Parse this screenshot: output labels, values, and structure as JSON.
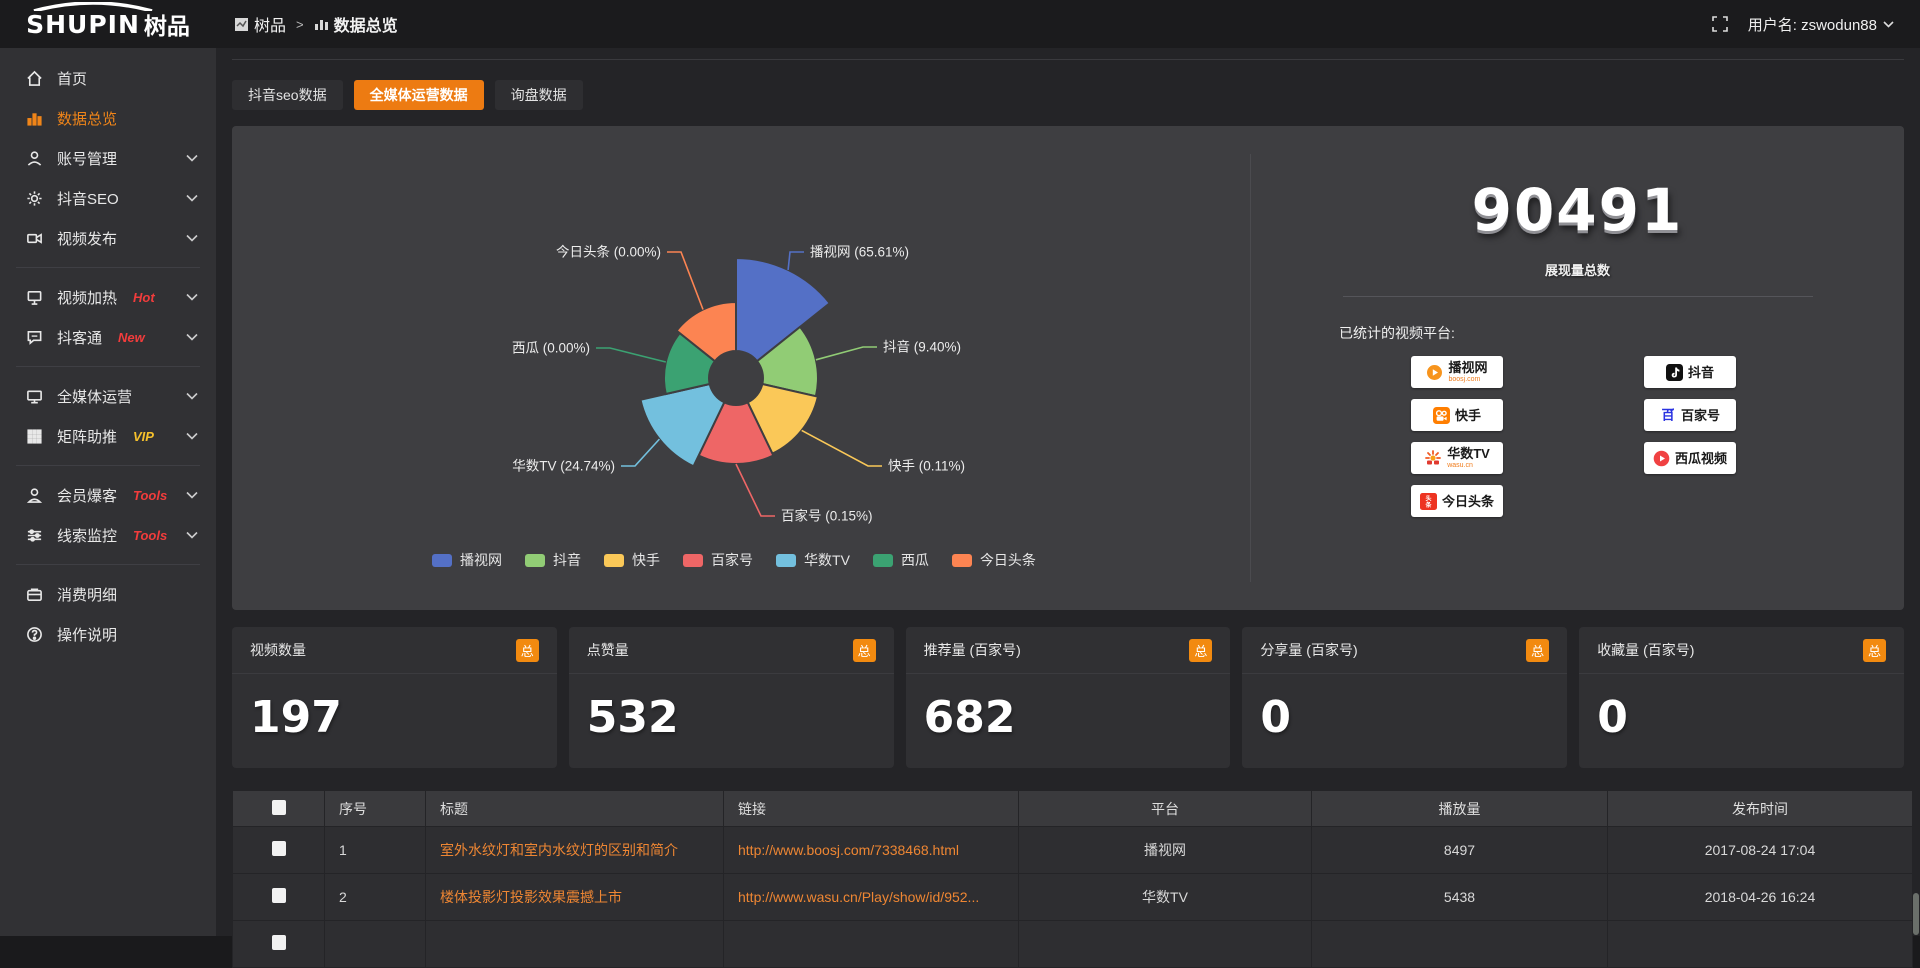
{
  "topbar": {
    "logo_text": "SHUPIN",
    "logo_suffix": "树品",
    "breadcrumb_home": "树品",
    "breadcrumb_sep": ">",
    "breadcrumb_current": "数据总览",
    "username": "用户名: zswodun88"
  },
  "sidebar": {
    "items": [
      {
        "label": "首页",
        "icon": "home-icon",
        "active": false,
        "chevron": false,
        "badge": "",
        "divider_after": false
      },
      {
        "label": "数据总览",
        "icon": "bar-chart-icon",
        "active": true,
        "chevron": false,
        "badge": "",
        "divider_after": false
      },
      {
        "label": "账号管理",
        "icon": "user-icon",
        "active": false,
        "chevron": true,
        "badge": "",
        "divider_after": false
      },
      {
        "label": "抖音SEO",
        "icon": "gear-icon",
        "active": false,
        "chevron": true,
        "badge": "",
        "divider_after": false
      },
      {
        "label": "视频发布",
        "icon": "video-camera-icon",
        "active": false,
        "chevron": true,
        "badge": "",
        "divider_after": true
      },
      {
        "label": "视频加热",
        "icon": "screen-icon",
        "active": false,
        "chevron": true,
        "badge": "Hot",
        "badge_color": "#f23c3c",
        "divider_after": false
      },
      {
        "label": "抖客通",
        "icon": "chat-bubble-icon",
        "active": false,
        "chevron": true,
        "badge": "New",
        "badge_color": "#f23c3c",
        "divider_after": true
      },
      {
        "label": "全媒体运营",
        "icon": "monitor-icon",
        "active": false,
        "chevron": true,
        "badge": "",
        "divider_after": false
      },
      {
        "label": "矩阵助推",
        "icon": "grid-icon",
        "active": false,
        "chevron": true,
        "badge": "VIP",
        "badge_color": "#f6c12c",
        "divider_after": true
      },
      {
        "label": "会员爆客",
        "icon": "member-icon",
        "active": false,
        "chevron": true,
        "badge": "Tools",
        "badge_color": "#f23c3c",
        "divider_after": false
      },
      {
        "label": "线索监控",
        "icon": "sliders-icon",
        "active": false,
        "chevron": true,
        "badge": "Tools",
        "badge_color": "#f23c3c",
        "divider_after": true
      },
      {
        "label": "消费明细",
        "icon": "wallet-icon",
        "active": false,
        "chevron": false,
        "badge": "",
        "divider_after": false
      },
      {
        "label": "操作说明",
        "icon": "help-circle-icon",
        "active": false,
        "chevron": false,
        "badge": "",
        "divider_after": false
      }
    ]
  },
  "tabs": [
    {
      "label": "抖音seo数据",
      "active": false
    },
    {
      "label": "全媒体运营数据",
      "active": true
    },
    {
      "label": "询盘数据",
      "active": false
    }
  ],
  "chart_data": {
    "type": "pie",
    "subtype": "nightingale-rose-donut",
    "title": "",
    "categories": [
      "播视网",
      "抖音",
      "快手",
      "百家号",
      "华数TV",
      "西瓜",
      "今日头条"
    ],
    "values": [
      65.61,
      9.4,
      0.11,
      0.15,
      24.74,
      0.0,
      0.0
    ],
    "unit": "%",
    "labels": [
      "播视网 (65.61%)",
      "抖音 (9.40%)",
      "快手 (0.11%)",
      "百家号 (0.15%)",
      "华数TV (24.74%)",
      "西瓜 (0.00%)",
      "今日头条 (0.00%)"
    ],
    "colors": [
      "#5470C6",
      "#91CC75",
      "#FAC858",
      "#EE6666",
      "#73C0DE",
      "#3BA272",
      "#FC8452"
    ],
    "legend": [
      "播视网",
      "抖音",
      "快手",
      "百家号",
      "华数TV",
      "西瓜",
      "今日头条"
    ],
    "legend_position": "bottom"
  },
  "summary": {
    "total": "90491",
    "total_label": "展现量总数",
    "platforms_label": "已统计的视频平台:",
    "platforms": [
      {
        "name": "播视网",
        "sub": "boosj.com",
        "icon": "boosj-logo"
      },
      {
        "name": "抖音",
        "sub": "",
        "icon": "douyin-logo"
      },
      {
        "name": "快手",
        "sub": "",
        "icon": "kuaishou-logo"
      },
      {
        "name": "百家号",
        "sub": "",
        "icon": "baijiahao-logo"
      },
      {
        "name": "华数TV",
        "sub": "wasu.cn",
        "icon": "wasu-logo"
      },
      {
        "name": "西瓜视频",
        "sub": "",
        "icon": "xigua-logo"
      },
      {
        "name": "今日头条",
        "sub": "",
        "icon": "toutiao-logo"
      }
    ]
  },
  "stats": [
    {
      "label": "视频数量",
      "badge": "总",
      "value": "197"
    },
    {
      "label": "点赞量",
      "badge": "总",
      "value": "532"
    },
    {
      "label": "推荐量 (百家号)",
      "badge": "总",
      "value": "682"
    },
    {
      "label": "分享量 (百家号)",
      "badge": "总",
      "value": "0"
    },
    {
      "label": "收藏量 (百家号)",
      "badge": "总",
      "value": "0"
    }
  ],
  "table": {
    "columns": [
      "序号",
      "标题",
      "链接",
      "平台",
      "播放量",
      "发布时间"
    ],
    "rows": [
      {
        "index": "1",
        "title": "室外水纹灯和室内水纹灯的区别和简介",
        "link": "http://www.boosj.com/7338468.html",
        "platform": "播视网",
        "plays": "8497",
        "time": "2017-08-24 17:04"
      },
      {
        "index": "2",
        "title": "楼体投影灯投影效果震撼上市",
        "link": "http://www.wasu.cn/Play/show/id/952...",
        "platform": "华数TV",
        "plays": "5438",
        "time": "2018-04-26 16:24"
      }
    ],
    "partial_row": true
  }
}
